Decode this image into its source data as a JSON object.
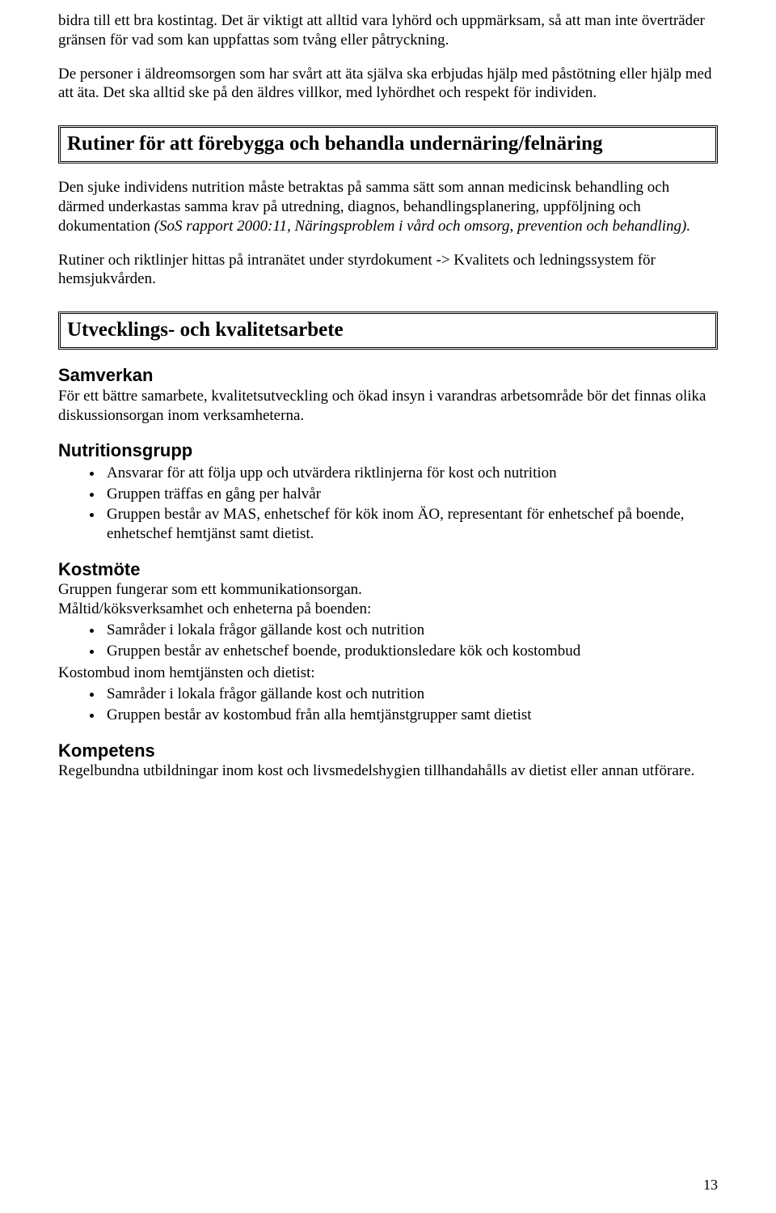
{
  "intro": {
    "p1": "bidra till ett bra kostintag. Det är viktigt att alltid vara lyhörd och uppmärksam, så att man inte överträder gränsen för vad som kan uppfattas som tvång eller påtryckning.",
    "p2": "De personer i äldreomsorgen som har svårt att äta själva ska erbjudas hjälp med påstötning eller hjälp med att äta. Det ska alltid ske på den äldres villkor, med lyhördhet och respekt för individen."
  },
  "section1": {
    "heading": "Rutiner för att förebygga och behandla undernäring/felnäring",
    "p1a": "Den sjuke individens nutrition måste betraktas på samma sätt som annan medicinsk behandling och därmed underkastas samma krav på utredning, diagnos, behandlingsplanering, uppföljning och dokumentation ",
    "p1b": "(SoS rapport 2000:11, Näringsproblem i vård och omsorg, prevention och behandling).",
    "p2": "Rutiner och riktlinjer hittas på intranätet under styrdokument -> Kvalitets och ledningssystem för hemsjukvården."
  },
  "section2": {
    "heading": "Utvecklings- och kvalitetsarbete",
    "samverkan_h": "Samverkan",
    "samverkan_p": "För ett bättre samarbete, kvalitetsutveckling och ökad insyn i varandras arbetsområde bör det finnas olika diskussionsorgan inom verksamheterna.",
    "nutri_h": "Nutritionsgrupp",
    "nutri_items": [
      "Ansvarar för att följa upp och utvärdera riktlinjerna för kost och nutrition",
      "Gruppen träffas en gång per halvår",
      "Gruppen består av MAS, enhetschef för kök inom ÄO, representant för enhetschef på boende, enhetschef hemtjänst samt dietist."
    ],
    "kost_h": "Kostmöte",
    "kost_p1": "Gruppen fungerar som ett kommunikationsorgan.",
    "kost_p2": "Måltid/köksverksamhet och enheterna på boenden:",
    "kost_list1": [
      "Samråder i lokala frågor gällande kost och nutrition",
      "Gruppen består av enhetschef boende, produktionsledare kök och kostombud"
    ],
    "kost_p3": "Kostombud inom hemtjänsten och dietist:",
    "kost_list2": [
      "Samråder i lokala frågor gällande kost och nutrition",
      "Gruppen består av kostombud från alla hemtjänstgrupper samt dietist"
    ],
    "komp_h": "Kompetens",
    "komp_p": "Regelbundna utbildningar inom kost och livsmedelshygien tillhandahålls av dietist eller annan utförare."
  },
  "page_number": "13"
}
